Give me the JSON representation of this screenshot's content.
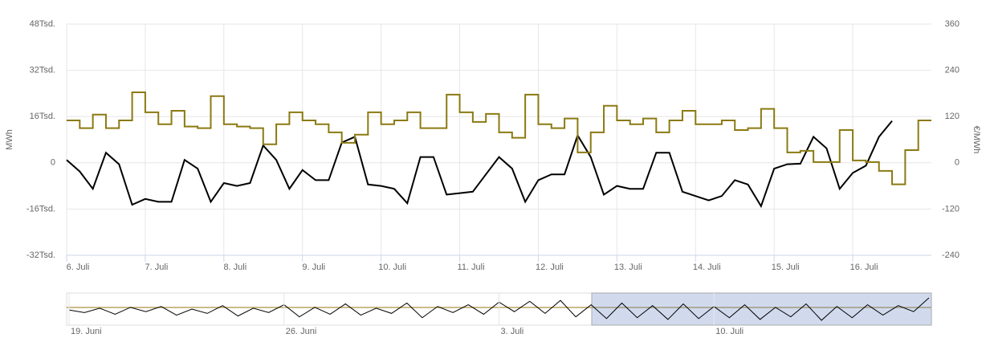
{
  "chart_data": {
    "type": "line",
    "categories": [
      "6. Juli",
      null,
      null,
      null,
      null,
      null,
      "7. Juli",
      null,
      null,
      null,
      null,
      null,
      "8. Juli",
      null,
      null,
      null,
      null,
      null,
      "9. Juli",
      null,
      null,
      null,
      null,
      null,
      "10. Juli",
      null,
      null,
      null,
      null,
      null,
      "11. Juli",
      null,
      null,
      null,
      null,
      null,
      "12. Juli",
      null,
      null,
      null,
      null,
      null,
      "13. Juli",
      null,
      null,
      null,
      null,
      null,
      "14. Juli",
      null,
      null,
      null,
      null,
      null,
      "15. Juli",
      null,
      null,
      null,
      null,
      null,
      "16. Juli",
      null,
      null,
      null,
      null,
      null
    ],
    "y_label": "MWh",
    "y2_label": "€/MWh",
    "ylim": [
      -32000,
      48000
    ],
    "yticks": [
      {
        "value": -32000,
        "label": "-32Tsd."
      },
      {
        "value": -16000,
        "label": "-16Tsd."
      },
      0,
      {
        "value": 16000,
        "label": "16Tsd."
      },
      {
        "value": 32000,
        "label": "32Tsd."
      },
      {
        "value": 48000,
        "label": "48Tsd."
      }
    ],
    "y2lim": [
      -240,
      360
    ],
    "y2ticks": [
      -240,
      -120,
      0,
      120,
      240,
      360
    ],
    "grid": true,
    "series": [
      {
        "color": "#000000",
        "axis": "y",
        "step": false,
        "values": [
          1000,
          -3000,
          -9000,
          3500,
          -500,
          -14500,
          -12500,
          -13500,
          -13500,
          1000,
          -2000,
          -13500,
          -7000,
          -8000,
          -7000,
          6000,
          1000,
          -9000,
          -2500,
          -6000,
          -6000,
          7000,
          9000,
          -7500,
          -8000,
          -9000,
          -14000,
          2000,
          2000,
          -11000,
          -10500,
          -10000,
          -4000,
          2000,
          -2000,
          -13500,
          -6000,
          -4000,
          -4000,
          9500,
          2000,
          -11000,
          -8000,
          -9000,
          -9000,
          3500,
          3500,
          -10000,
          -11500,
          -13000,
          -11500,
          -6000,
          -7500,
          -15000,
          -2000,
          -500,
          -300,
          9000,
          5000,
          -9000,
          -3500,
          -1000,
          9000,
          14500,
          null,
          null
        ]
      },
      {
        "color": "#8b7a12",
        "axis": "y2",
        "step": true,
        "values": [
          110,
          90,
          125,
          90,
          110,
          183,
          131,
          100,
          135,
          94,
          90,
          173,
          100,
          94,
          90,
          48,
          100,
          131,
          110,
          100,
          79,
          52,
          73,
          131,
          100,
          110,
          131,
          90,
          90,
          177,
          131,
          106,
          127,
          79,
          65,
          177,
          100,
          90,
          115,
          27,
          79,
          148,
          110,
          100,
          115,
          79,
          110,
          135,
          100,
          100,
          110,
          85,
          90,
          140,
          90,
          27,
          31,
          2,
          2,
          85,
          6,
          2,
          -21,
          -56,
          33,
          110
        ]
      }
    ],
    "navigator": {
      "categories": [
        "19. Juni",
        null,
        null,
        null,
        null,
        null,
        null,
        null,
        null,
        null,
        null,
        null,
        null,
        null,
        "26. Juni",
        null,
        null,
        null,
        null,
        null,
        null,
        null,
        null,
        null,
        null,
        null,
        null,
        null,
        "3. Juli",
        null,
        null,
        null,
        null,
        null,
        null,
        null,
        null,
        null,
        null,
        null,
        null,
        null,
        "10. Juli",
        null,
        null,
        null,
        null,
        null,
        null,
        null,
        null,
        null,
        null,
        null,
        null,
        null,
        null
      ],
      "values": [
        0,
        -3000,
        2000,
        -5000,
        3000,
        -2000,
        4000,
        -6000,
        1000,
        -4000,
        5000,
        -7000,
        2000,
        -3000,
        6000,
        -8000,
        3000,
        -5000,
        7000,
        -6000,
        2000,
        -4000,
        8000,
        -9000,
        4000,
        -3000,
        6000,
        -5000,
        9000,
        -2000,
        10000,
        -4000,
        11000,
        -8000,
        6000,
        -10000,
        8000,
        -9000,
        5000,
        -11000,
        7000,
        -10000,
        4000,
        -9000,
        6000,
        -11000,
        3000,
        -8000,
        7000,
        -12000,
        4000,
        -9000,
        6000,
        -6000,
        5000,
        -2000,
        14000
      ]
    }
  }
}
